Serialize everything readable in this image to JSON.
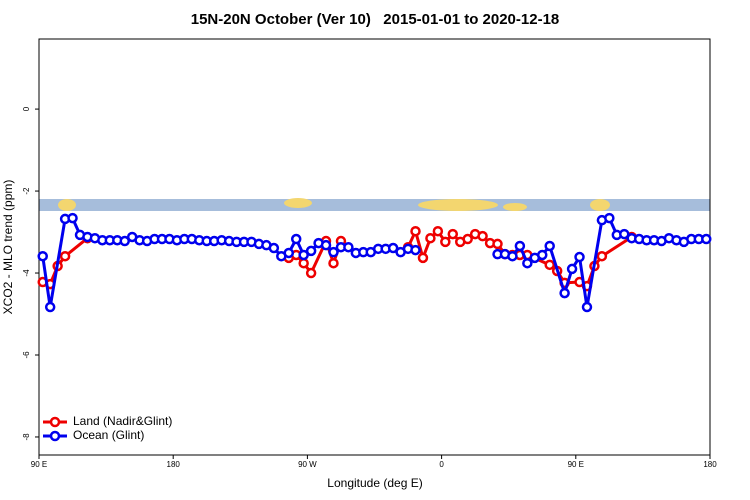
{
  "chart_data": {
    "type": "line",
    "title": "15N-20N October (Ver 10)   2015-01-01 to 2020-12-18",
    "xlabel": "Longitude (deg E)",
    "ylabel": "XCO2 - MLO trend (ppm)",
    "xlim": [
      90,
      540
    ],
    "xticks": [
      {
        "value": 90,
        "label": "90 E"
      },
      180,
      {
        "value": 270,
        "label": "90 W"
      },
      {
        "value": 360,
        "label": "0"
      },
      {
        "value": 450,
        "label": "90 E"
      },
      {
        "value": 540,
        "label": "180"
      }
    ],
    "ylim": [
      -8.44,
      1.71
    ],
    "yticks": [
      0,
      -2,
      -4,
      -6,
      -8
    ],
    "legend": "bottom left",
    "series": [
      {
        "name": "Land (Nadir&Glint)",
        "color": "#ee0000",
        "x": [
          92.5,
          97.5,
          102.5,
          107.5,
          122.5,
          250,
          257.5,
          262.5,
          267.5,
          272.5,
          282.5,
          287.5,
          292.5,
          317.5,
          337.5,
          342.5,
          347.5,
          352.5,
          357.5,
          362.5,
          367.5,
          372.5,
          377.5,
          382.5,
          387.5,
          392.5,
          397.5,
          402.5,
          407.5,
          412.5,
          417.5,
          432.5,
          437.5,
          442.5,
          452.5,
          457.5,
          462.5,
          467.5,
          487.5
        ],
        "values": [
          -4.22,
          -4.27,
          -3.83,
          -3.59,
          -3.15,
          null,
          -3.63,
          -3.56,
          -3.76,
          -4.0,
          -3.22,
          -3.76,
          -3.22,
          null,
          -3.37,
          -2.98,
          -3.63,
          -3.15,
          -2.98,
          -3.24,
          -3.05,
          -3.24,
          -3.17,
          -3.05,
          -3.1,
          -3.27,
          -3.29,
          -3.54,
          -3.56,
          -3.56,
          -3.56,
          -3.8,
          -3.95,
          -4.24,
          -4.22,
          -4.32,
          -3.83,
          -3.59,
          -3.12
        ]
      },
      {
        "name": "Ocean (Glint)",
        "color": "#0000ee",
        "x": [
          92.5,
          97.5,
          107.5,
          112.5,
          117.5,
          122.5,
          127.5,
          132.5,
          137.5,
          142.5,
          147.5,
          152.5,
          157.5,
          162.5,
          167.5,
          172.5,
          177.5,
          182.5,
          187.5,
          192.5,
          197.5,
          202.5,
          207.5,
          212.5,
          217.5,
          222.5,
          227.5,
          232.5,
          237.5,
          242.5,
          247.5,
          252.5,
          257.5,
          262.5,
          267.5,
          272.5,
          277.5,
          282.5,
          287.5,
          292.5,
          297.5,
          302.5,
          307.5,
          312.5,
          317.5,
          322.5,
          327.5,
          332.5,
          337.5,
          342.5,
          370,
          397.5,
          402.5,
          407.5,
          412.5,
          417.5,
          422.5,
          427.5,
          432.5,
          442.5,
          447.5,
          452.5,
          457.5,
          467.5,
          472.5,
          477.5,
          482.5,
          487.5,
          492.5,
          497.5,
          502.5,
          507.5,
          512.5,
          517.5,
          522.5,
          527.5,
          532.5,
          537.5
        ],
        "values": [
          -3.59,
          -4.83,
          -2.68,
          -2.66,
          -3.07,
          -3.12,
          -3.15,
          -3.2,
          -3.2,
          -3.2,
          -3.22,
          -3.12,
          -3.2,
          -3.22,
          -3.17,
          -3.17,
          -3.17,
          -3.2,
          -3.17,
          -3.17,
          -3.2,
          -3.22,
          -3.22,
          -3.2,
          -3.22,
          -3.24,
          -3.24,
          -3.24,
          -3.29,
          -3.32,
          -3.39,
          -3.59,
          -3.51,
          -3.17,
          -3.56,
          -3.46,
          -3.27,
          -3.32,
          -3.49,
          -3.37,
          -3.37,
          -3.51,
          -3.49,
          -3.49,
          -3.41,
          -3.41,
          -3.39,
          -3.49,
          -3.41,
          -3.44,
          null,
          -3.54,
          -3.54,
          -3.59,
          -3.34,
          -3.76,
          -3.63,
          -3.56,
          -3.34,
          -4.49,
          -3.9,
          -3.61,
          -4.83,
          -2.71,
          -2.66,
          -3.07,
          -3.05,
          -3.15,
          -3.17,
          -3.2,
          -3.2,
          -3.22,
          -3.15,
          -3.2,
          -3.24,
          -3.17,
          -3.17,
          -3.17
        ]
      }
    ]
  }
}
